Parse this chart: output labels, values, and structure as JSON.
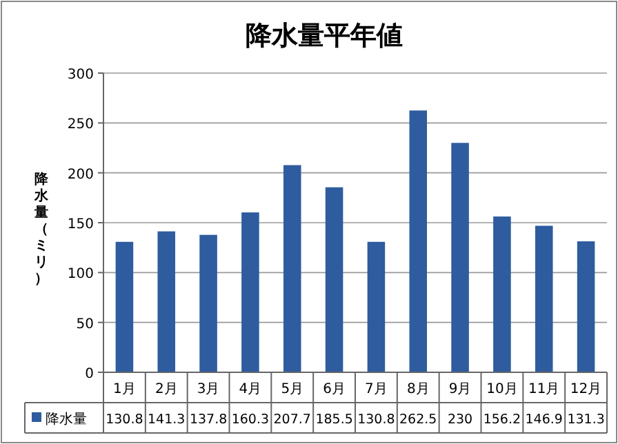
{
  "chart_data": {
    "type": "bar",
    "title": "降水量平年値",
    "ylabel": "降水量（ミリ）",
    "categories": [
      "1月",
      "2月",
      "3月",
      "4月",
      "5月",
      "6月",
      "7月",
      "8月",
      "9月",
      "10月",
      "11月",
      "12月"
    ],
    "series": [
      {
        "name": "降水量",
        "color": "#2e5c9e",
        "values": [
          130.8,
          141.3,
          137.8,
          160.3,
          207.7,
          185.5,
          130.8,
          262.5,
          230,
          156.2,
          146.9,
          131.3
        ]
      }
    ],
    "ylim": [
      0,
      300
    ],
    "yticks": [
      0,
      50,
      100,
      150,
      200,
      250,
      300
    ],
    "grid": "y",
    "data_labels": true,
    "legend": "bottom"
  }
}
